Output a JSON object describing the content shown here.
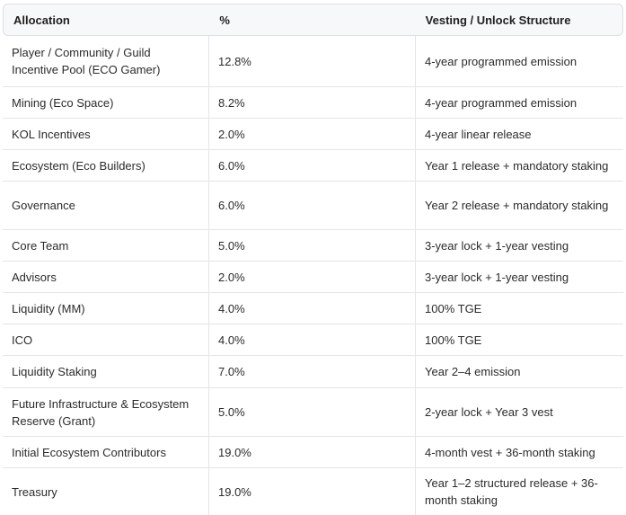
{
  "table": {
    "headers": [
      "Allocation",
      "%",
      "Vesting / Unlock Structure"
    ],
    "rows": [
      [
        "Player / Community / Guild Incentive Pool (ECO Gamer)",
        "12.8%",
        "4-year programmed emission"
      ],
      [
        "Mining (Eco Space)",
        "8.2%",
        "4-year programmed emission"
      ],
      [
        "KOL Incentives",
        "2.0%",
        "4-year linear release"
      ],
      [
        "Ecosystem (Eco Builders)",
        "6.0%",
        "Year 1 release + mandatory staking"
      ],
      [
        "Governance",
        "6.0%",
        "Year 2 release + mandatory staking"
      ],
      [
        "Core Team",
        "5.0%",
        "3-year lock + 1-year vesting"
      ],
      [
        "Advisors",
        "2.0%",
        "3-year lock + 1-year vesting"
      ],
      [
        "Liquidity (MM)",
        "4.0%",
        "100% TGE"
      ],
      [
        "ICO",
        "4.0%",
        "100% TGE"
      ],
      [
        "Liquidity Staking",
        "7.0%",
        "Year 2–4 emission"
      ],
      [
        "Future Infrastructure & Ecosystem Reserve (Grant)",
        "5.0%",
        "2-year lock + Year 3 vest"
      ],
      [
        "Initial Ecosystem Contributors",
        "19.0%",
        "4-month vest + 36-month staking"
      ],
      [
        "Treasury",
        "19.0%",
        "Year 1–2 structured release + 36-month staking"
      ]
    ]
  }
}
